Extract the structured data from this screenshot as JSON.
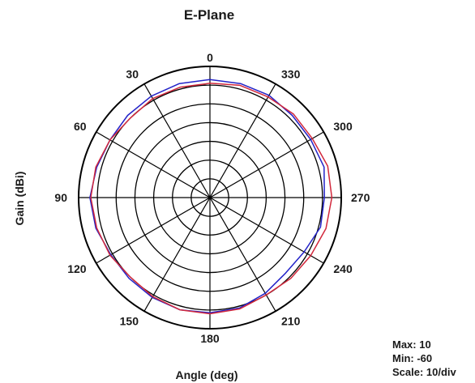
{
  "chart_data": {
    "type": "line",
    "subtype": "polar",
    "title": "E-Plane",
    "xlabel": "Angle (deg)",
    "ylabel": "Gain (dBi)",
    "angle_direction": "counterclockwise",
    "zero_angle_position": "top",
    "angle_tick_labels": [
      "0",
      "30",
      "60",
      "90",
      "120",
      "150",
      "180",
      "210",
      "240",
      "270",
      "300",
      "330"
    ],
    "radial_range": [
      -60,
      10
    ],
    "radial_rings": 7,
    "grid": true,
    "stats": {
      "max_label": "Max: 10",
      "min_label": "Min: -60",
      "scale_label": "Scale: 10/div"
    },
    "series": [
      {
        "color": "#2323c8",
        "angles": [
          0,
          15,
          30,
          45,
          60,
          75,
          90,
          105,
          120,
          135,
          150,
          165,
          180,
          195,
          210,
          225,
          240,
          255,
          270,
          285,
          300,
          315,
          330,
          345
        ],
        "values": [
          3,
          3,
          2.5,
          2,
          1.5,
          2.5,
          4,
          3,
          1,
          1,
          1.5,
          2,
          1.5,
          1,
          -1,
          -3,
          -2,
          1,
          1,
          3,
          2,
          2,
          3,
          3
        ]
      },
      {
        "color": "#d2283c",
        "angles": [
          0,
          15,
          30,
          45,
          60,
          75,
          90,
          105,
          120,
          135,
          150,
          165,
          180,
          195,
          210,
          225,
          240,
          255,
          270,
          285,
          300,
          315,
          330,
          345
        ],
        "values": [
          1,
          1,
          1,
          0,
          1.5,
          3,
          3.5,
          2.5,
          1.5,
          0,
          1,
          2,
          2,
          1.5,
          0,
          1,
          2,
          4,
          5,
          5,
          3,
          3,
          2,
          2
        ]
      }
    ]
  }
}
